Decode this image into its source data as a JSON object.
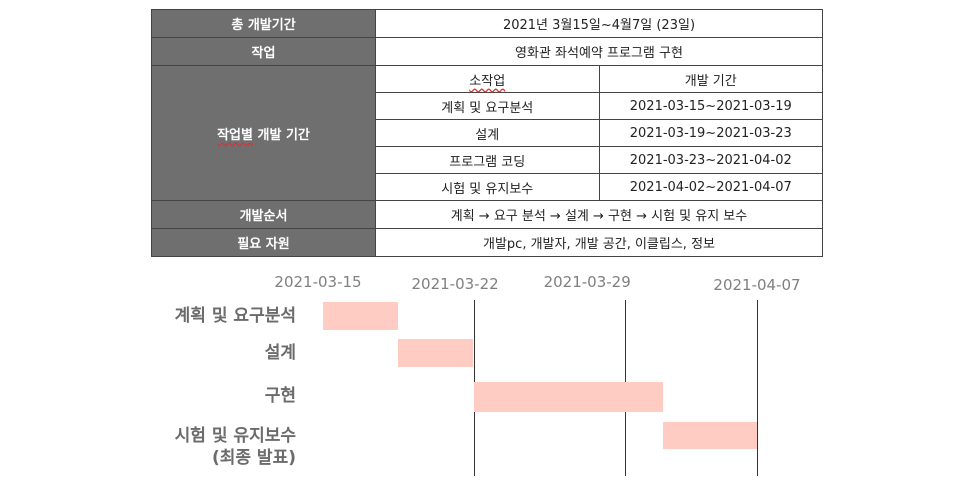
{
  "summary_table": {
    "total_period": {
      "label": "총 개발기간",
      "value": "2021년 3월15일~4월7일 (23일)"
    },
    "task": {
      "label": "작업",
      "value": "영화관 좌석예약 프로그램 구현"
    },
    "period_by_task": {
      "label_part1": "작업별",
      "label_part2": " 개발 기간",
      "col_subtask": "소작업",
      "col_period": "개발 기간",
      "rows": [
        {
          "name": "계획 및 요구분석",
          "period": "2021-03-15~2021-03-19"
        },
        {
          "name": "설계",
          "period": "2021-03-19~2021-03-23"
        },
        {
          "name": "프로그램 코딩",
          "period": "2021-03-23~2021-04-02"
        },
        {
          "name": "시험 및 유지보수",
          "period": "2021-04-02~2021-04-07"
        }
      ]
    },
    "order": {
      "label": "개발순서",
      "value": "계획 → 요구 분석 → 설계 → 구현 → 시험 및 유지 보수"
    },
    "resources": {
      "label": "필요 자원",
      "value": "개발pc, 개발자, 개발 공간, 이클립스, 정보"
    }
  },
  "chart_data": {
    "type": "gantt",
    "axis_dates": [
      "2021-03-15",
      "2021-03-22",
      "2021-03-29",
      "2021-04-07"
    ],
    "tasks": [
      {
        "label": "계획 및 요구분석",
        "label_line2": "",
        "start": "2021-03-15",
        "end": "2021-03-19"
      },
      {
        "label": "설계",
        "label_line2": "",
        "start": "2021-03-19",
        "end": "2021-03-23"
      },
      {
        "label": "구현",
        "label_line2": "",
        "start": "2021-03-23",
        "end": "2021-04-02"
      },
      {
        "label": "시험 및 유지보수",
        "label_line2": "(최종 발표)",
        "start": "2021-04-02",
        "end": "2021-04-07"
      }
    ],
    "bar_color": "#ffccc4"
  }
}
